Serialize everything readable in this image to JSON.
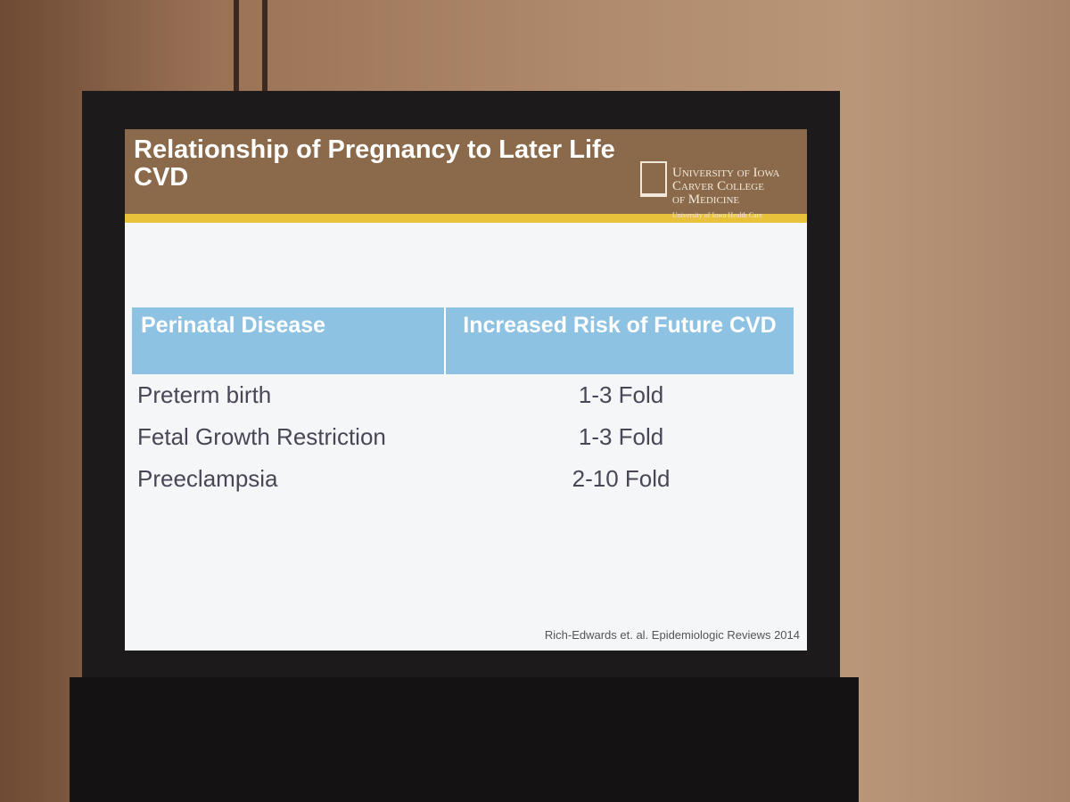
{
  "slide": {
    "title": "Relationship of Pregnancy to Later Life CVD",
    "logo": {
      "line1": "University of Iowa",
      "line2": "Carver College",
      "line3": "of Medicine",
      "line4": "University of Iowa Health Care"
    },
    "table": {
      "header": [
        "Perinatal Disease",
        "Increased Risk of Future CVD"
      ],
      "rows": [
        [
          "Preterm birth",
          "1-3 Fold"
        ],
        [
          "Fetal Growth Restriction",
          "1-3 Fold"
        ],
        [
          "Preeclampsia",
          "2-10 Fold"
        ]
      ]
    },
    "citation": "Rich-Edwards et. al. Epidemiologic Reviews 2014"
  }
}
